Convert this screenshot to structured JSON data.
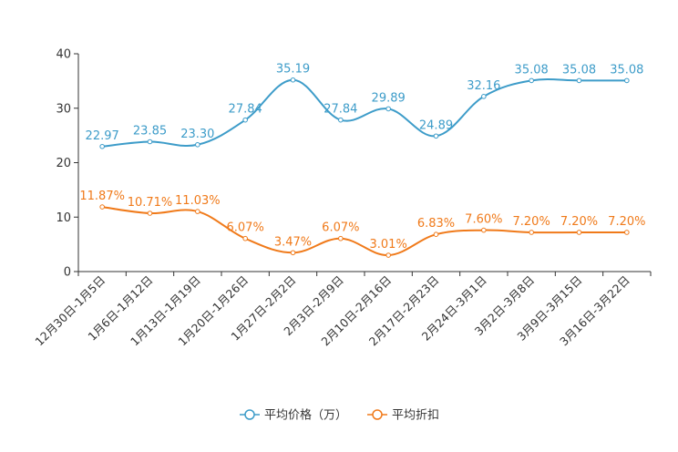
{
  "chart_data": {
    "type": "line",
    "title": "",
    "xlabel": "",
    "ylabel": "",
    "ylim": [
      0,
      40
    ],
    "yticks": [
      0,
      10,
      20,
      30,
      40
    ],
    "grid": false,
    "legend_position": "bottom-center",
    "categories": [
      "12月30日-1月5日",
      "1月6日-1月12日",
      "1月13日-1月19日",
      "1月20日-1月26日",
      "1月27日-2月2日",
      "2月3日-2月9日",
      "2月10日-2月16日",
      "2月17日-2月23日",
      "2月24日-3月1日",
      "3月2日-3月8日",
      "3月9日-3月15日",
      "3月16日-3月22日"
    ],
    "series": [
      {
        "name": "平均价格（万）",
        "color": "#3d9cc9",
        "values": [
          22.97,
          23.85,
          23.3,
          27.84,
          35.19,
          27.84,
          29.89,
          24.89,
          32.16,
          35.08,
          35.08,
          35.08
        ],
        "labels": [
          "22.97",
          "23.85",
          "23.30",
          "27.84",
          "35.19",
          "27.84",
          "29.89",
          "24.89",
          "32.16",
          "35.08",
          "35.08",
          "35.08"
        ]
      },
      {
        "name": "平均折扣",
        "color": "#f07a1a",
        "values": [
          11.87,
          10.71,
          11.03,
          6.07,
          3.47,
          6.07,
          3.01,
          6.83,
          7.6,
          7.2,
          7.2,
          7.2
        ],
        "labels": [
          "11.87%",
          "10.71%",
          "11.03%",
          "6.07%",
          "3.47%",
          "6.07%",
          "3.01%",
          "6.83%",
          "7.60%",
          "7.20%",
          "7.20%",
          "7.20%"
        ]
      }
    ]
  }
}
